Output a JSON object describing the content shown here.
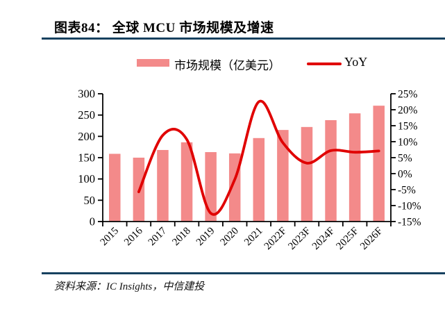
{
  "page": {
    "title": "图表84：  全球 MCU 市场规模及增速",
    "source": "资料来源：IC Insights，中信建投"
  },
  "legend": {
    "bar_label": "市场规模（亿美元）",
    "line_label": "YoY"
  },
  "colors": {
    "bar_fill": "#F38A8A",
    "line_stroke": "#E00000",
    "rule": "#17415F",
    "axis": "#000000"
  },
  "chart_data": {
    "type": "combo_bar_line",
    "title": "全球 MCU 市场规模及增速",
    "categories": [
      "2015",
      "2016",
      "2017",
      "2018",
      "2019",
      "2020",
      "2021",
      "2022F",
      "2023F",
      "2024F",
      "2025F",
      "2026F"
    ],
    "series": [
      {
        "name": "市场规模（亿美元）",
        "type": "bar",
        "axis": "left",
        "values": [
          159,
          150,
          168,
          186,
          163,
          160,
          196,
          215,
          222,
          238,
          254,
          272
        ]
      },
      {
        "name": "YoY",
        "type": "line",
        "axis": "right",
        "unit": "%",
        "values": [
          null,
          -5.7,
          12.0,
          10.7,
          -12.4,
          -1.8,
          22.5,
          9.7,
          3.3,
          7.2,
          6.7,
          7.1
        ]
      }
    ],
    "left_axis": {
      "min": 0,
      "max": 300,
      "ticks": [
        300,
        250,
        200,
        150,
        100,
        50,
        0
      ]
    },
    "right_axis": {
      "min": -15,
      "max": 25,
      "ticks": [
        "25%",
        "20%",
        "15%",
        "10%",
        "5%",
        "0%",
        "-5%",
        "-10%",
        "-15%"
      ]
    },
    "legend_position": "top",
    "grid": false
  }
}
